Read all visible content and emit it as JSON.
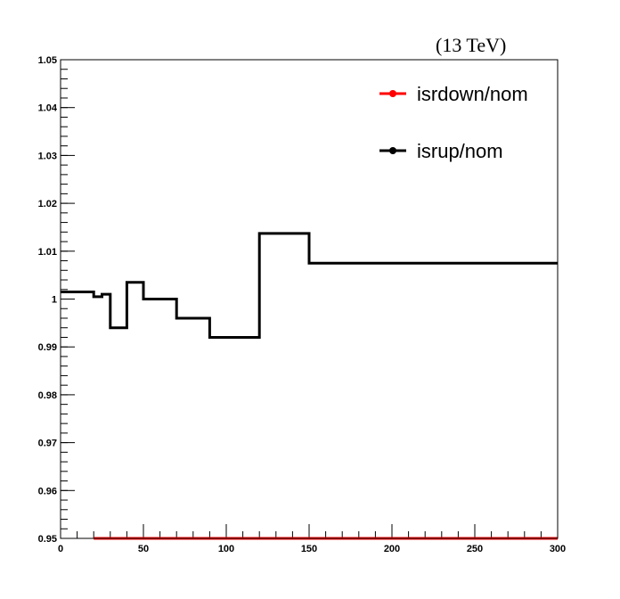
{
  "chart_data": {
    "type": "line",
    "title": "",
    "energy_label": "(13 TeV)",
    "xlabel": "",
    "ylabel": "",
    "xlim": [
      0,
      300
    ],
    "ylim": [
      0.95,
      1.05
    ],
    "x_ticks": [
      0,
      50,
      100,
      150,
      200,
      250,
      300
    ],
    "y_ticks": [
      0.95,
      0.96,
      0.97,
      0.98,
      0.99,
      1,
      1.01,
      1.02,
      1.03,
      1.04,
      1.05
    ],
    "x_tick_labels": [
      "0",
      "50",
      "100",
      "150",
      "200",
      "250",
      "300"
    ],
    "y_tick_labels": [
      "0.95",
      "0.96",
      "0.97",
      "0.98",
      "0.99",
      "1",
      "1.01",
      "1.02",
      "1.03",
      "1.04",
      "1.05"
    ],
    "grid": false,
    "legend_position": "top-right",
    "series": [
      {
        "name": "isrdown/nom",
        "color": "#ff0000",
        "bins": [
          {
            "x0": 20,
            "x1": 300,
            "y": 0.95
          }
        ]
      },
      {
        "name": "isrup/nom",
        "color": "#000000",
        "bins": [
          {
            "x0": 0,
            "x1": 20,
            "y": 1.0015
          },
          {
            "x0": 20,
            "x1": 25,
            "y": 1.0005
          },
          {
            "x0": 25,
            "x1": 30,
            "y": 1.001
          },
          {
            "x0": 30,
            "x1": 40,
            "y": 0.994
          },
          {
            "x0": 40,
            "x1": 50,
            "y": 1.0035
          },
          {
            "x0": 50,
            "x1": 70,
            "y": 1.0
          },
          {
            "x0": 70,
            "x1": 90,
            "y": 0.996
          },
          {
            "x0": 90,
            "x1": 120,
            "y": 0.992
          },
          {
            "x0": 120,
            "x1": 150,
            "y": 1.0137
          },
          {
            "x0": 150,
            "x1": 300,
            "y": 1.0075
          }
        ]
      }
    ]
  }
}
